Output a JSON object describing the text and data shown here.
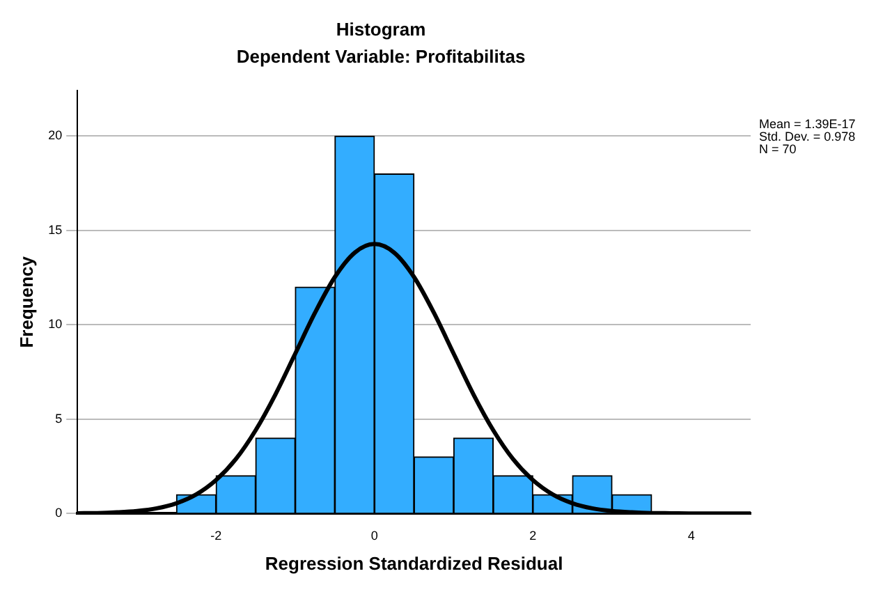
{
  "chart_data": {
    "type": "histogram",
    "title": "Histogram",
    "subtitle": "Dependent Variable: Profitabilitas",
    "xlabel": "Regression Standardized Residual",
    "ylabel": "Frequency",
    "bins": [
      -2.5,
      -2,
      -1.5,
      -1,
      -0.5,
      0,
      0.5,
      1,
      1.5,
      2,
      2.5,
      3,
      3.5
    ],
    "values": [
      1,
      2,
      4,
      12,
      20,
      18,
      3,
      4,
      2,
      1,
      2,
      1
    ],
    "color": "#33adff",
    "series": [
      {
        "type": "line",
        "color": "#000000",
        "x": [
          -3.75,
          -3.5,
          -3.25,
          -3,
          -2.75,
          -2.5,
          -2.25,
          -2,
          -1.75,
          -1.5,
          -1.25,
          -1,
          -0.75,
          -0.5,
          -0.25,
          0,
          0.25,
          0.5,
          0.75,
          1,
          1.25,
          1.5,
          1.75,
          2,
          2.25,
          2.5,
          2.75,
          3,
          3.25,
          3.5,
          3.75,
          4,
          4.25,
          4.5,
          4.75
        ],
        "values": [
          0.01,
          0.02,
          0.06,
          0.13,
          0.27,
          0.54,
          1.01,
          1.77,
          2.88,
          4.41,
          6.31,
          8.47,
          10.64,
          12.53,
          13.82,
          14.28,
          13.82,
          12.53,
          10.64,
          8.47,
          6.31,
          4.41,
          2.88,
          1.77,
          1.01,
          0.54,
          0.27,
          0.13,
          0.06,
          0.02,
          0.01,
          0,
          0,
          0,
          0
        ]
      }
    ],
    "xlim": [
      -3.75,
      4.75
    ],
    "xticks": [
      -2,
      0,
      2,
      4
    ],
    "ylim": [
      0,
      22.4
    ],
    "yticks": [
      0,
      5,
      10,
      15,
      20
    ],
    "grid": "y",
    "legend": false,
    "marker": "none",
    "line_style": "solid",
    "annotations": [
      "Mean = 1.39E-17",
      "Std. Dev. = 0.978",
      "N = 70"
    ]
  }
}
